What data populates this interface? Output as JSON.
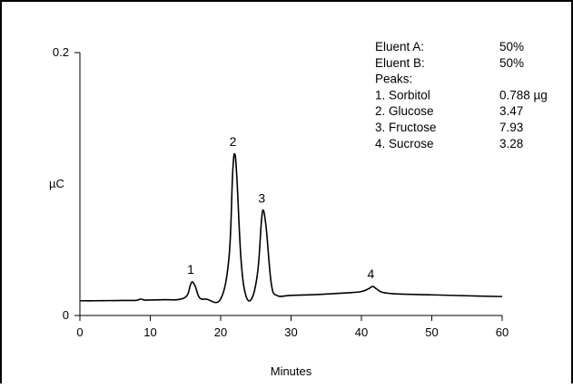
{
  "chart_data": {
    "type": "line",
    "xlabel": "Minutes",
    "ylabel": "µC",
    "xlim": [
      0,
      60
    ],
    "ylim": [
      0,
      0.2
    ],
    "x_ticks": [
      "0",
      "10",
      "20",
      "30",
      "40",
      "50",
      "60"
    ],
    "y_ticks": [
      "0",
      "0.2"
    ],
    "grid": false,
    "series": [
      {
        "x": [
          0,
          2,
          4,
          6,
          8,
          8.6,
          9.2,
          10,
          12,
          14,
          15.2,
          15.7,
          16.0,
          16.4,
          17,
          18,
          20,
          21.2,
          21.7,
          22.0,
          22.3,
          22.9,
          23.6,
          24.5,
          25.3,
          25.8,
          26.1,
          26.5,
          27.2,
          28,
          30,
          34,
          38,
          40,
          41,
          41.6,
          42.2,
          43,
          45,
          50,
          55,
          60
        ],
        "y": [
          0.0112,
          0.0112,
          0.0113,
          0.0114,
          0.0115,
          0.0125,
          0.0117,
          0.0118,
          0.012,
          0.0121,
          0.015,
          0.0232,
          0.0255,
          0.022,
          0.0135,
          0.0124,
          0.0125,
          0.045,
          0.108,
          0.1229,
          0.105,
          0.042,
          0.0148,
          0.0138,
          0.035,
          0.0723,
          0.0797,
          0.065,
          0.024,
          0.0152,
          0.0153,
          0.016,
          0.0172,
          0.0182,
          0.0203,
          0.0221,
          0.02,
          0.0176,
          0.0164,
          0.0157,
          0.015,
          0.0144
        ]
      }
    ],
    "peak_labels": [
      {
        "label": "1",
        "x": 16.0,
        "y": 0.0255
      },
      {
        "label": "2",
        "x": 22.0,
        "y": 0.1229
      },
      {
        "label": "3",
        "x": 26.1,
        "y": 0.0797
      },
      {
        "label": "4",
        "x": 41.6,
        "y": 0.0221
      }
    ],
    "legend": {
      "rows": [
        {
          "name": "Eluent A:",
          "value": "50%"
        },
        {
          "name": "Eluent B:",
          "value": "50%"
        },
        {
          "name": "Peaks:",
          "value": ""
        },
        {
          "name": "1.  Sorbitol",
          "value": "0.788 µg"
        },
        {
          "name": "2.  Glucose",
          "value": "3.47"
        },
        {
          "name": "3.  Fructose",
          "value": "7.93"
        },
        {
          "name": "4.  Sucrose",
          "value": "3.28"
        }
      ]
    },
    "colors": {
      "line": "#000000",
      "background": "#ffffff"
    }
  }
}
